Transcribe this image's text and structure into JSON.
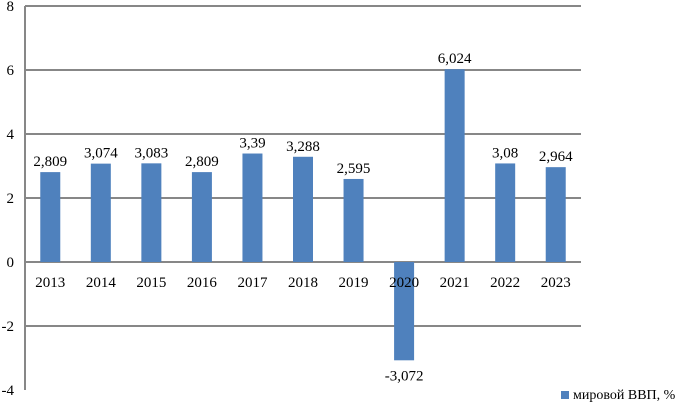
{
  "chart_data": {
    "type": "bar",
    "categories": [
      "2013",
      "2014",
      "2015",
      "2016",
      "2017",
      "2018",
      "2019",
      "2020",
      "2021",
      "2022",
      "2023"
    ],
    "series": [
      {
        "name": "мировой ВВП, %",
        "values": [
          2.809,
          3.074,
          3.083,
          2.809,
          3.39,
          3.288,
          2.595,
          -3.072,
          6.024,
          3.08,
          2.964
        ],
        "labels": [
          "2,809",
          "3,074",
          "3,083",
          "2,809",
          "3,39",
          "3,288",
          "2,595",
          "-3,072",
          "6,024",
          "3,08",
          "2,964"
        ],
        "color": "#4f81bd"
      }
    ],
    "ylim": [
      -4,
      8
    ],
    "yticks": [
      "-4",
      "-2",
      "0",
      "2",
      "4",
      "6",
      "8"
    ],
    "grid": true,
    "legend_position": "bottom-right",
    "gridline_color": "#878787"
  }
}
